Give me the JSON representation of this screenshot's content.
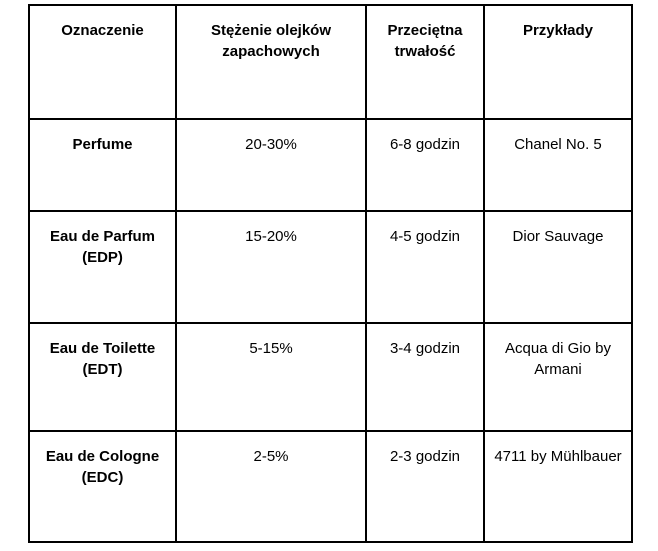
{
  "colors": {
    "background": "#ffffff",
    "border": "#000000",
    "text": "#000000"
  },
  "table": {
    "columns": [
      {
        "label": "Oznaczenie"
      },
      {
        "label": "Stężenie olejków\nzapachowych"
      },
      {
        "label": "Przeciętna\ntrwałość"
      },
      {
        "label": "Przykłady"
      }
    ],
    "rows": [
      {
        "name": "Perfume",
        "concentration": "20-30%",
        "longevity": "6-8 godzin",
        "example": "Chanel No. 5"
      },
      {
        "name": "Eau de Parfum\n(EDP)",
        "concentration": "15-20%",
        "longevity": "4-5 godzin",
        "example": "Dior Sauvage"
      },
      {
        "name": "Eau de Toilette\n(EDT)",
        "concentration": "5-15%",
        "longevity": "3-4 godzin",
        "example": "Acqua di Gio by\nArmani"
      },
      {
        "name": "Eau de Cologne\n(EDC)",
        "concentration": "2-5%",
        "longevity": "2-3 godzin",
        "example": "4711 by Mühlbauer"
      }
    ]
  }
}
